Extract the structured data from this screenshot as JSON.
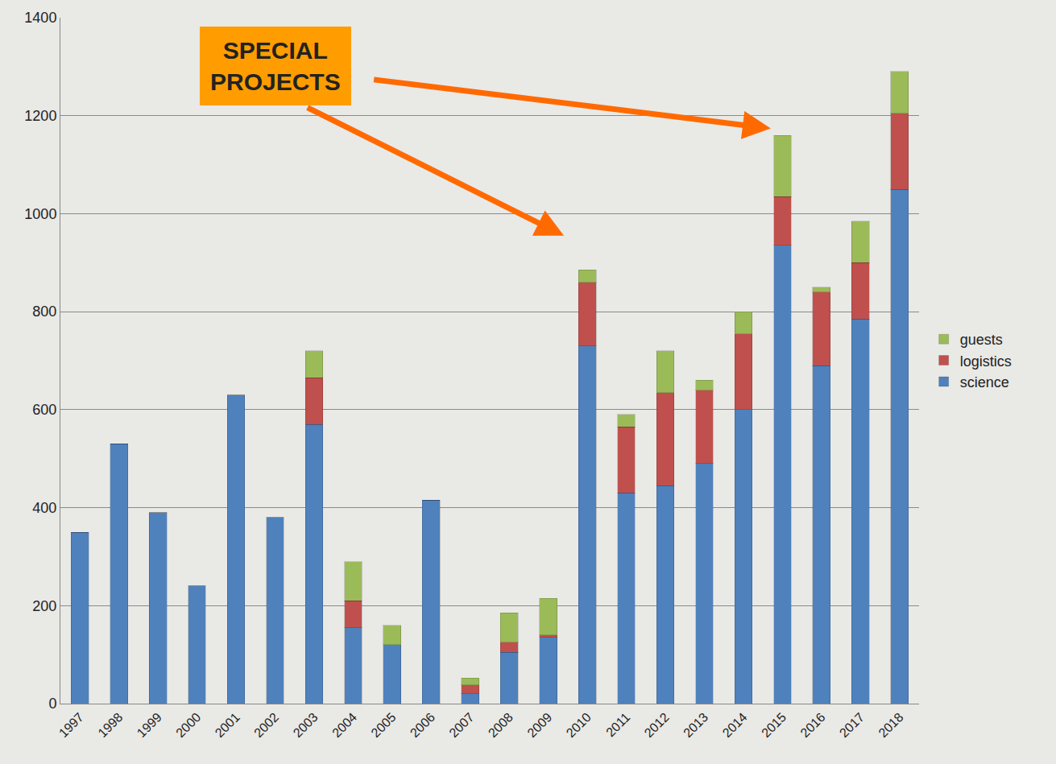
{
  "chart_data": {
    "type": "bar",
    "stacked": true,
    "categories": [
      "1997",
      "1998",
      "1999",
      "2000",
      "2001",
      "2002",
      "2003",
      "2004",
      "2005",
      "2006",
      "2007",
      "2008",
      "2009",
      "2010",
      "2011",
      "2012",
      "2013",
      "2014",
      "2015",
      "2016",
      "2017",
      "2018"
    ],
    "series": [
      {
        "name": "science",
        "color": "#4f81bd",
        "values": [
          350,
          530,
          390,
          240,
          630,
          380,
          570,
          155,
          120,
          415,
          20,
          105,
          135,
          730,
          430,
          445,
          490,
          600,
          935,
          690,
          785,
          1050
        ]
      },
      {
        "name": "logistics",
        "color": "#c0504d",
        "values": [
          0,
          0,
          0,
          0,
          0,
          0,
          95,
          55,
          0,
          0,
          18,
          20,
          5,
          130,
          135,
          190,
          150,
          155,
          100,
          150,
          115,
          155
        ]
      },
      {
        "name": "guests",
        "color": "#9bbb59",
        "values": [
          0,
          0,
          0,
          0,
          0,
          0,
          55,
          80,
          40,
          0,
          14,
          60,
          75,
          25,
          25,
          85,
          20,
          45,
          125,
          10,
          85,
          85
        ]
      }
    ],
    "ylim": [
      0,
      1400
    ],
    "yticks": [
      0,
      200,
      400,
      600,
      800,
      1000,
      1200,
      1400
    ],
    "grid": true,
    "legend": "right",
    "annotations": [
      {
        "text": "SPECIAL PROJECTS",
        "targets": [
          "2015",
          "2010"
        ]
      }
    ]
  }
}
